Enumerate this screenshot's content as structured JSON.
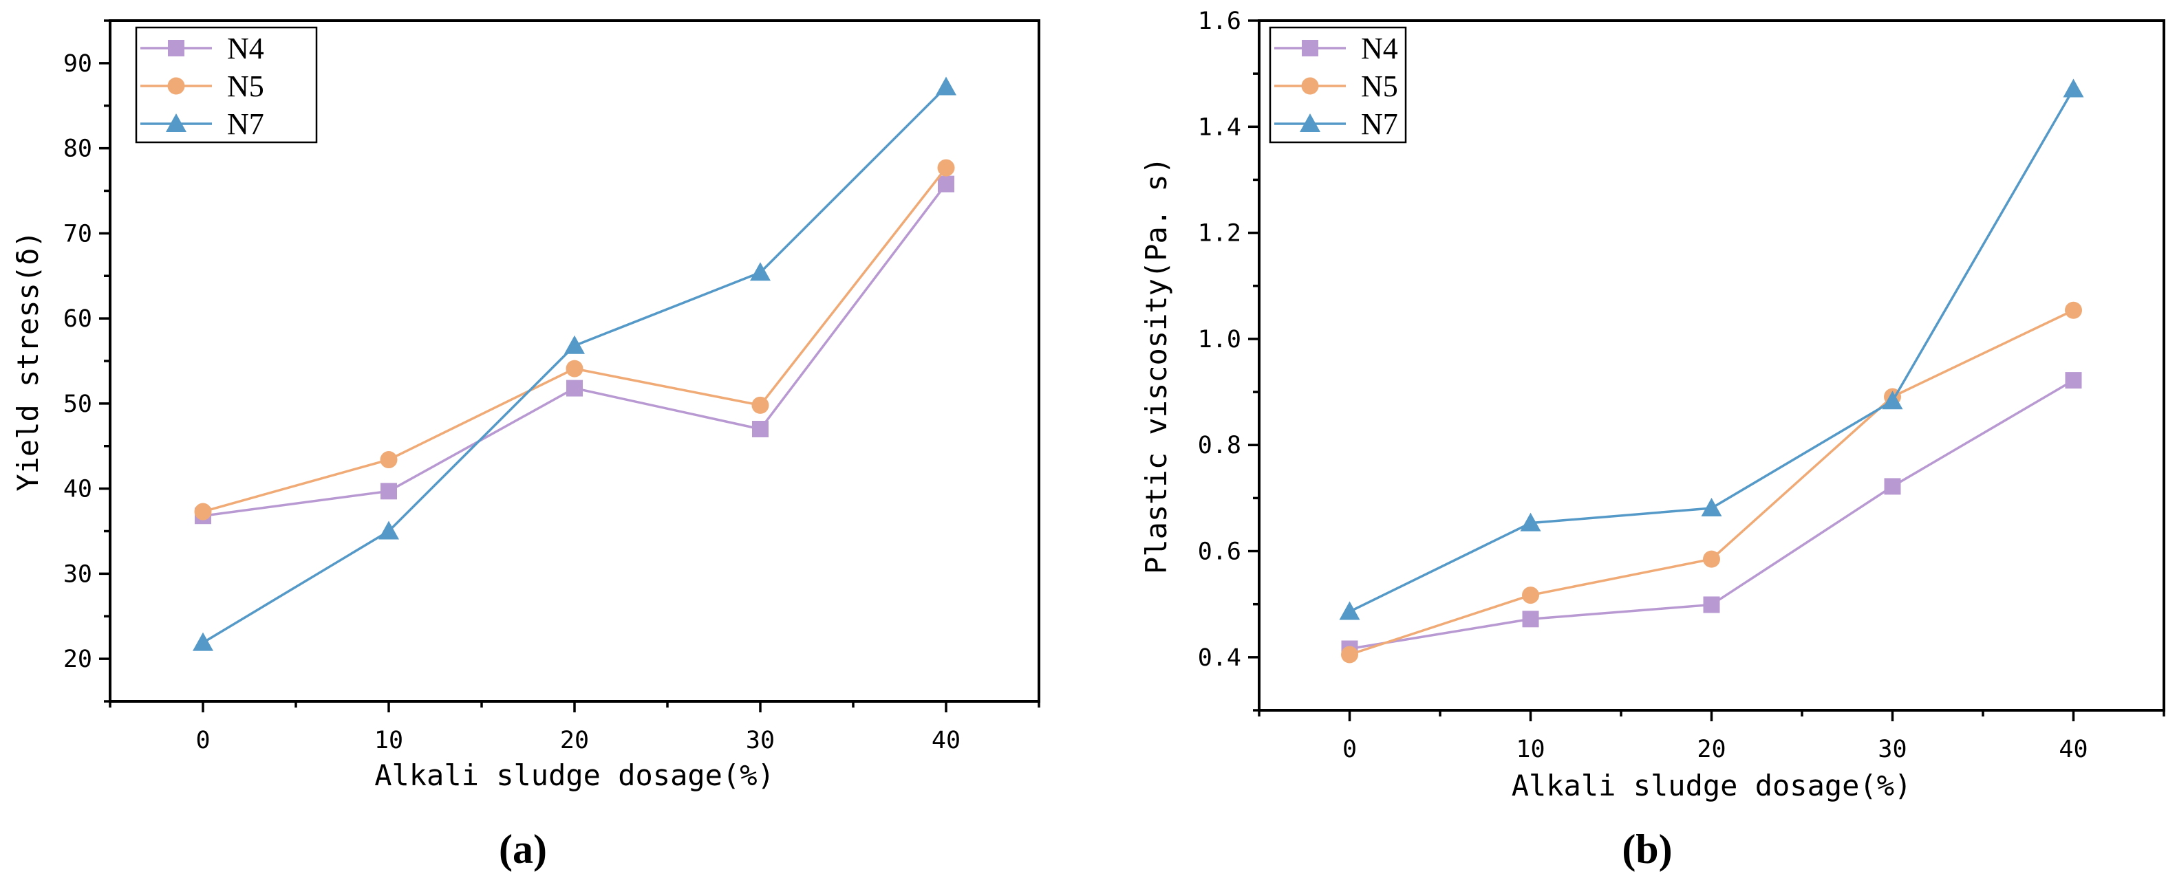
{
  "figure": {
    "panel_labels": [
      "(a)",
      "(b)"
    ]
  },
  "chart_data": [
    {
      "type": "line",
      "panel": "(a)",
      "title": "",
      "xlabel": "Alkali  sludge dosage(%)",
      "ylabel": "Yield stress(δ)",
      "x": [
        0,
        10,
        20,
        30,
        40
      ],
      "xlim": [
        -5,
        45
      ],
      "ylim": [
        15,
        95
      ],
      "xticks": [
        0,
        10,
        20,
        30,
        40
      ],
      "yticks": [
        20,
        30,
        40,
        50,
        60,
        70,
        80,
        90
      ],
      "tick_labels_y": [
        "20",
        "30",
        "40",
        "50",
        "60",
        "70",
        "80",
        "90"
      ],
      "legend_position": "top-left",
      "series": [
        {
          "name": "N4",
          "marker": "square",
          "color": "#b899d2",
          "values": [
            36.8,
            39.7,
            51.8,
            47.0,
            75.8
          ]
        },
        {
          "name": "N5",
          "marker": "circle",
          "color": "#f0aa76",
          "values": [
            37.3,
            43.4,
            54.1,
            49.8,
            77.7
          ]
        },
        {
          "name": "N7",
          "marker": "triangle",
          "color": "#5499c7",
          "values": [
            21.9,
            35.0,
            56.8,
            65.4,
            87.2
          ]
        }
      ]
    },
    {
      "type": "line",
      "panel": "(b)",
      "title": "",
      "xlabel": "Alkali  sludge dosage(%)",
      "ylabel": "Plastic viscosity(Pa. s)",
      "x": [
        0,
        10,
        20,
        30,
        40
      ],
      "xlim": [
        -5,
        45
      ],
      "ylim": [
        0.3,
        1.6
      ],
      "xticks": [
        0,
        10,
        20,
        30,
        40
      ],
      "yticks": [
        0.4,
        0.6,
        0.8,
        1.0,
        1.2,
        1.4,
        1.6
      ],
      "tick_labels_y": [
        "0.4",
        "0.6",
        "0.8",
        "1.0",
        "1.2",
        "1.4",
        "1.6"
      ],
      "legend_position": "top-left",
      "series": [
        {
          "name": "N4",
          "marker": "square",
          "color": "#b899d2",
          "values": [
            0.416,
            0.472,
            0.499,
            0.722,
            0.922
          ]
        },
        {
          "name": "N5",
          "marker": "circle",
          "color": "#f0aa76",
          "values": [
            0.405,
            0.517,
            0.585,
            0.891,
            1.054
          ]
        },
        {
          "name": "N7",
          "marker": "triangle",
          "color": "#5499c7",
          "values": [
            0.486,
            0.653,
            0.681,
            0.883,
            1.471
          ]
        }
      ]
    }
  ]
}
